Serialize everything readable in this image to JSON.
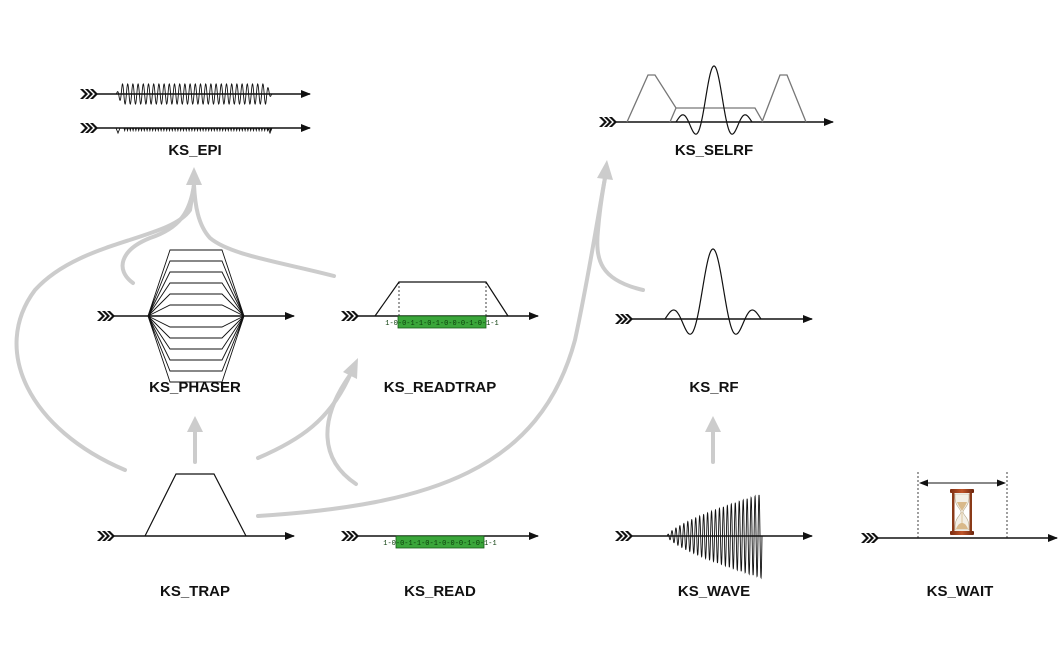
{
  "labels": {
    "epi": "KS_EPI",
    "selrf": "KS_SELRF",
    "phaser": "KS_PHASER",
    "readtrap": "KS_READTRAP",
    "rf": "KS_RF",
    "trap": "KS_TRAP",
    "read": "KS_READ",
    "wave": "KS_WAVE",
    "wait": "KS_WAIT"
  },
  "adc_bits": "1-0-0-1-1-0-1-0-0-0-1-0-1-1",
  "colors": {
    "adc_fill": "#3aa63a",
    "flow_arrow": "#cccccc",
    "selrf_gradient": "#777777"
  },
  "icons": {
    "wait": "hourglass-icon",
    "axis_start": "chevron-tail-icon"
  }
}
